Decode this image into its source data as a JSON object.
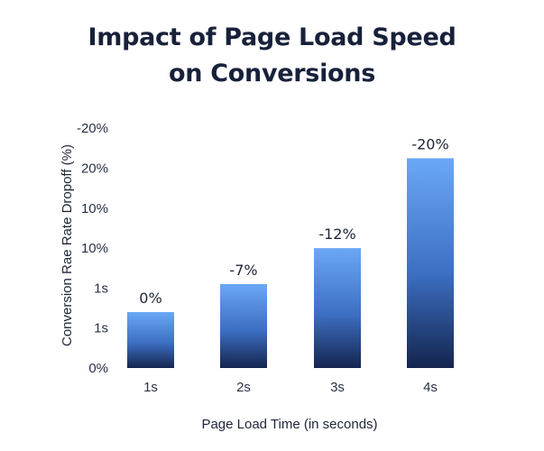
{
  "chart_data": {
    "type": "bar",
    "title_line1": "Impact of Page Load Speed",
    "title_line2": "on Conversions",
    "xlabel": "Page Load Time (in seconds)",
    "ylabel": "Conversion Rae Rate Dropoff (%)",
    "categories": [
      "1s",
      "2s",
      "3s",
      "4s"
    ],
    "values": [
      0,
      -7,
      -12,
      -20
    ],
    "value_labels": [
      "0%",
      "-7%",
      "-12%",
      "-20%"
    ],
    "y_tick_labels": [
      "0%",
      "1s",
      "1s",
      "10%",
      "10%",
      "20%",
      "-20%"
    ],
    "ylim": [
      0,
      20
    ],
    "bar_heights_as_magnitude": [
      1.4,
      2.1,
      3.0,
      5.25
    ],
    "y_tick_count": 7,
    "grid": false,
    "colors": {
      "bar_top": "#6aa8f5",
      "bar_bottom": "#14254f",
      "text": "#1e2538"
    }
  }
}
